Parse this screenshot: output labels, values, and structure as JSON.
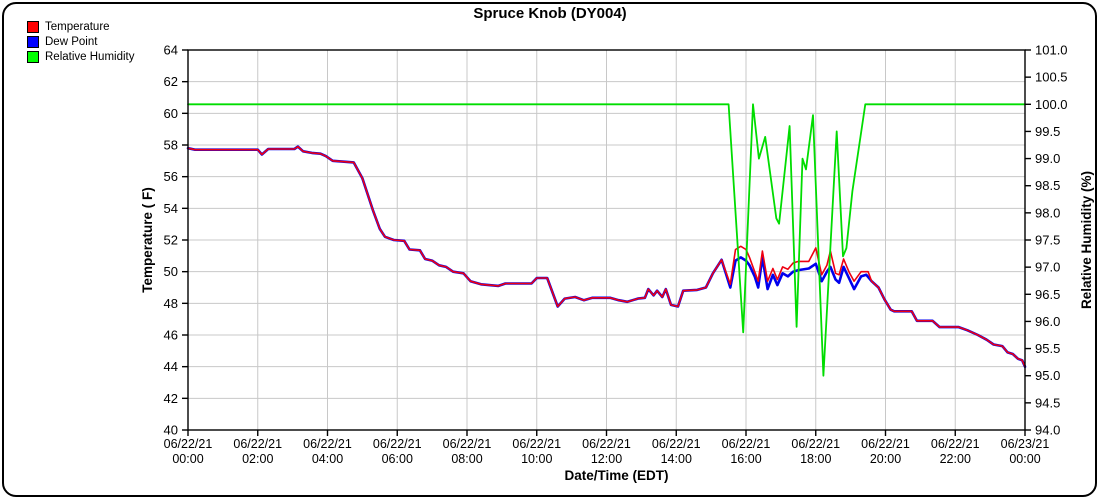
{
  "chart_data": {
    "type": "line",
    "title": "Spruce Knob (DY004)",
    "x_axis": {
      "label": "Date/Time (EDT)",
      "unit": "hours",
      "range": [
        0,
        24
      ],
      "ticks": [
        {
          "t": 0,
          "date": "06/22/21",
          "time": "00:00"
        },
        {
          "t": 2,
          "date": "06/22/21",
          "time": "02:00"
        },
        {
          "t": 4,
          "date": "06/22/21",
          "time": "04:00"
        },
        {
          "t": 6,
          "date": "06/22/21",
          "time": "06:00"
        },
        {
          "t": 8,
          "date": "06/22/21",
          "time": "08:00"
        },
        {
          "t": 10,
          "date": "06/22/21",
          "time": "10:00"
        },
        {
          "t": 12,
          "date": "06/22/21",
          "time": "12:00"
        },
        {
          "t": 14,
          "date": "06/22/21",
          "time": "14:00"
        },
        {
          "t": 16,
          "date": "06/22/21",
          "time": "16:00"
        },
        {
          "t": 18,
          "date": "06/22/21",
          "time": "18:00"
        },
        {
          "t": 20,
          "date": "06/22/21",
          "time": "20:00"
        },
        {
          "t": 22,
          "date": "06/22/21",
          "time": "22:00"
        },
        {
          "t": 24,
          "date": "06/23/21",
          "time": "00:00"
        }
      ],
      "grid": true
    },
    "y_left": {
      "label": "Temperature ( F)",
      "range": [
        40,
        64
      ],
      "tick_step": 2,
      "grid": true
    },
    "y_right": {
      "label": "Relative Humidity (%)",
      "range": [
        94.0,
        101.0
      ],
      "tick_step": 0.5,
      "grid": false
    },
    "legend": [
      {
        "label": "Temperature",
        "color": "#ff0000"
      },
      {
        "label": "Dew Point",
        "color": "#0000ff"
      },
      {
        "label": "Relative Humidity",
        "color": "#00ff00"
      }
    ],
    "colors": {
      "grid": "#c8c8c8",
      "axis": "#000000",
      "temperature_line": "#ee0011",
      "dew_point_line": "#0000ee",
      "humidity_line": "#00dd00"
    },
    "series": [
      {
        "name": "Dew Point",
        "axis": "left",
        "points": [
          [
            0,
            57.8
          ],
          [
            0.2,
            57.7
          ],
          [
            2.0,
            57.7
          ],
          [
            2.12,
            57.4
          ],
          [
            2.3,
            57.75
          ],
          [
            3.05,
            57.75
          ],
          [
            3.15,
            57.9
          ],
          [
            3.3,
            57.6
          ],
          [
            3.55,
            57.5
          ],
          [
            3.8,
            57.45
          ],
          [
            3.95,
            57.3
          ],
          [
            4.15,
            57.0
          ],
          [
            4.75,
            56.9
          ],
          [
            5.0,
            55.9
          ],
          [
            5.3,
            53.9
          ],
          [
            5.5,
            52.7
          ],
          [
            5.65,
            52.2
          ],
          [
            5.9,
            52.0
          ],
          [
            6.2,
            51.95
          ],
          [
            6.35,
            51.4
          ],
          [
            6.65,
            51.35
          ],
          [
            6.8,
            50.8
          ],
          [
            7.0,
            50.7
          ],
          [
            7.2,
            50.4
          ],
          [
            7.4,
            50.3
          ],
          [
            7.6,
            50.0
          ],
          [
            7.9,
            49.9
          ],
          [
            8.1,
            49.4
          ],
          [
            8.4,
            49.2
          ],
          [
            8.9,
            49.1
          ],
          [
            9.1,
            49.25
          ],
          [
            9.85,
            49.25
          ],
          [
            10.0,
            49.6
          ],
          [
            10.3,
            49.6
          ],
          [
            10.6,
            47.8
          ],
          [
            10.8,
            48.3
          ],
          [
            11.1,
            48.4
          ],
          [
            11.35,
            48.2
          ],
          [
            11.6,
            48.35
          ],
          [
            12.1,
            48.35
          ],
          [
            12.35,
            48.2
          ],
          [
            12.6,
            48.1
          ],
          [
            12.9,
            48.3
          ],
          [
            13.1,
            48.35
          ],
          [
            13.2,
            48.9
          ],
          [
            13.35,
            48.5
          ],
          [
            13.45,
            48.8
          ],
          [
            13.6,
            48.4
          ],
          [
            13.7,
            48.9
          ],
          [
            13.85,
            47.9
          ],
          [
            14.05,
            47.8
          ],
          [
            14.2,
            48.8
          ],
          [
            14.6,
            48.85
          ],
          [
            14.85,
            49.0
          ],
          [
            15.05,
            49.9
          ],
          [
            15.3,
            50.75
          ],
          [
            15.55,
            49.0
          ],
          [
            15.7,
            50.7
          ],
          [
            15.85,
            50.9
          ],
          [
            16.0,
            50.7
          ],
          [
            16.1,
            50.4
          ],
          [
            16.25,
            49.7
          ],
          [
            16.35,
            49.0
          ],
          [
            16.47,
            50.9
          ],
          [
            16.62,
            48.9
          ],
          [
            16.77,
            49.8
          ],
          [
            16.9,
            49.15
          ],
          [
            17.05,
            49.9
          ],
          [
            17.2,
            49.7
          ],
          [
            17.35,
            50.0
          ],
          [
            17.5,
            50.1
          ],
          [
            17.8,
            50.2
          ],
          [
            18.0,
            50.5
          ],
          [
            18.17,
            49.4
          ],
          [
            18.32,
            50.0
          ],
          [
            18.42,
            50.3
          ],
          [
            18.57,
            49.5
          ],
          [
            18.67,
            49.3
          ],
          [
            18.8,
            50.3
          ],
          [
            18.95,
            49.6
          ],
          [
            19.1,
            48.9
          ],
          [
            19.3,
            49.7
          ],
          [
            19.45,
            49.8
          ],
          [
            19.6,
            49.4
          ],
          [
            19.8,
            49.0
          ],
          [
            19.97,
            48.25
          ],
          [
            20.15,
            47.6
          ],
          [
            20.25,
            47.5
          ],
          [
            20.75,
            47.5
          ],
          [
            20.9,
            46.9
          ],
          [
            21.35,
            46.9
          ],
          [
            21.55,
            46.5
          ],
          [
            22.1,
            46.5
          ],
          [
            22.35,
            46.3
          ],
          [
            22.65,
            46.0
          ],
          [
            22.9,
            45.7
          ],
          [
            23.1,
            45.4
          ],
          [
            23.35,
            45.3
          ],
          [
            23.5,
            44.9
          ],
          [
            23.65,
            44.8
          ],
          [
            23.8,
            44.5
          ],
          [
            23.92,
            44.4
          ],
          [
            24,
            44.0
          ]
        ]
      },
      {
        "name": "Temperature",
        "axis": "left",
        "points": [
          [
            0,
            57.8
          ],
          [
            0.2,
            57.7
          ],
          [
            2.0,
            57.7
          ],
          [
            2.12,
            57.4
          ],
          [
            2.3,
            57.75
          ],
          [
            3.05,
            57.75
          ],
          [
            3.15,
            57.9
          ],
          [
            3.3,
            57.6
          ],
          [
            3.55,
            57.5
          ],
          [
            3.8,
            57.45
          ],
          [
            3.95,
            57.3
          ],
          [
            4.15,
            57.0
          ],
          [
            4.75,
            56.9
          ],
          [
            5.0,
            55.9
          ],
          [
            5.3,
            53.9
          ],
          [
            5.5,
            52.7
          ],
          [
            5.65,
            52.2
          ],
          [
            5.9,
            52.0
          ],
          [
            6.2,
            51.95
          ],
          [
            6.35,
            51.4
          ],
          [
            6.65,
            51.35
          ],
          [
            6.8,
            50.8
          ],
          [
            7.0,
            50.7
          ],
          [
            7.2,
            50.4
          ],
          [
            7.4,
            50.3
          ],
          [
            7.6,
            50.0
          ],
          [
            7.9,
            49.9
          ],
          [
            8.1,
            49.4
          ],
          [
            8.4,
            49.2
          ],
          [
            8.9,
            49.1
          ],
          [
            9.1,
            49.25
          ],
          [
            9.85,
            49.25
          ],
          [
            10.0,
            49.6
          ],
          [
            10.3,
            49.6
          ],
          [
            10.6,
            47.8
          ],
          [
            10.8,
            48.3
          ],
          [
            11.1,
            48.4
          ],
          [
            11.35,
            48.2
          ],
          [
            11.6,
            48.35
          ],
          [
            12.1,
            48.35
          ],
          [
            12.35,
            48.2
          ],
          [
            12.6,
            48.1
          ],
          [
            12.9,
            48.3
          ],
          [
            13.1,
            48.35
          ],
          [
            13.2,
            48.9
          ],
          [
            13.35,
            48.5
          ],
          [
            13.45,
            48.8
          ],
          [
            13.6,
            48.4
          ],
          [
            13.7,
            48.9
          ],
          [
            13.85,
            47.9
          ],
          [
            14.05,
            47.8
          ],
          [
            14.2,
            48.8
          ],
          [
            14.6,
            48.85
          ],
          [
            14.85,
            49.0
          ],
          [
            15.05,
            49.9
          ],
          [
            15.3,
            50.75
          ],
          [
            15.55,
            49.2
          ],
          [
            15.7,
            51.4
          ],
          [
            15.85,
            51.6
          ],
          [
            16.0,
            51.4
          ],
          [
            16.1,
            50.9
          ],
          [
            16.25,
            50.0
          ],
          [
            16.35,
            49.4
          ],
          [
            16.47,
            51.3
          ],
          [
            16.62,
            49.4
          ],
          [
            16.77,
            50.2
          ],
          [
            16.9,
            49.5
          ],
          [
            17.05,
            50.3
          ],
          [
            17.2,
            50.15
          ],
          [
            17.35,
            50.55
          ],
          [
            17.5,
            50.65
          ],
          [
            17.8,
            50.65
          ],
          [
            18.0,
            51.5
          ],
          [
            18.17,
            49.8
          ],
          [
            18.32,
            50.4
          ],
          [
            18.42,
            51.3
          ],
          [
            18.57,
            49.9
          ],
          [
            18.67,
            49.8
          ],
          [
            18.8,
            50.8
          ],
          [
            18.95,
            50.0
          ],
          [
            19.1,
            49.4
          ],
          [
            19.3,
            50.0
          ],
          [
            19.5,
            50.0
          ],
          [
            19.6,
            49.4
          ],
          [
            19.8,
            49.0
          ],
          [
            19.97,
            48.25
          ],
          [
            20.15,
            47.6
          ],
          [
            20.25,
            47.5
          ],
          [
            20.75,
            47.5
          ],
          [
            20.9,
            46.9
          ],
          [
            21.35,
            46.9
          ],
          [
            21.55,
            46.5
          ],
          [
            22.1,
            46.5
          ],
          [
            22.35,
            46.3
          ],
          [
            22.65,
            46.0
          ],
          [
            22.9,
            45.7
          ],
          [
            23.1,
            45.4
          ],
          [
            23.35,
            45.3
          ],
          [
            23.5,
            44.9
          ],
          [
            23.65,
            44.8
          ],
          [
            23.8,
            44.5
          ],
          [
            23.92,
            44.4
          ],
          [
            24,
            44.0
          ]
        ]
      },
      {
        "name": "Relative Humidity",
        "axis": "right",
        "points": [
          [
            0,
            100.0
          ],
          [
            15.5,
            100.0
          ],
          [
            15.92,
            95.8
          ],
          [
            16.2,
            100.0
          ],
          [
            16.37,
            99.0
          ],
          [
            16.55,
            99.4
          ],
          [
            16.87,
            97.9
          ],
          [
            16.95,
            97.8
          ],
          [
            17.25,
            99.6
          ],
          [
            17.45,
            95.9
          ],
          [
            17.62,
            99.0
          ],
          [
            17.72,
            98.8
          ],
          [
            17.92,
            99.8
          ],
          [
            18.22,
            95.0
          ],
          [
            18.6,
            99.5
          ],
          [
            18.78,
            97.2
          ],
          [
            18.88,
            97.35
          ],
          [
            19.05,
            98.4
          ],
          [
            19.42,
            100.0
          ],
          [
            24,
            100.0
          ]
        ]
      }
    ]
  }
}
